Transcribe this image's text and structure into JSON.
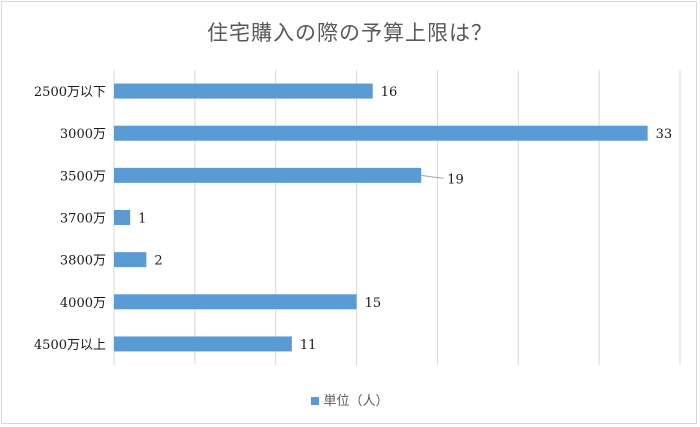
{
  "colors": {
    "bar": "#5b9bd5",
    "grid": "#d9d9d9",
    "text": "#595959"
  },
  "chart_data": {
    "type": "bar",
    "orientation": "horizontal",
    "title": "住宅購入の際の予算上限は？",
    "categories": [
      "2500万以下",
      "3000万",
      "3500万",
      "3700万",
      "3800万",
      "4000万",
      "4500万以上"
    ],
    "series": [
      {
        "name": "単位（人）",
        "values": [
          16,
          33,
          19,
          1,
          2,
          15,
          11
        ]
      }
    ],
    "xlim": [
      0,
      35
    ],
    "grid": true,
    "data_labels": true,
    "legend_position": "bottom"
  }
}
